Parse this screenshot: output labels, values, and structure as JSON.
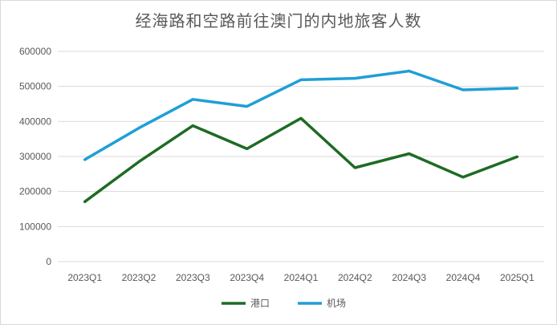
{
  "chart_data": {
    "type": "line",
    "title": "经海路和空路前往澳门的内地旅客人数",
    "categories": [
      "2023Q1",
      "2023Q2",
      "2023Q3",
      "2023Q4",
      "2024Q1",
      "2024Q2",
      "2024Q3",
      "2024Q4",
      "2025Q1"
    ],
    "series": [
      {
        "name": "港口",
        "color": "#1e6b24",
        "values": [
          171000,
          285000,
          388000,
          322000,
          409000,
          268000,
          308000,
          241000,
          299000
        ]
      },
      {
        "name": "机场",
        "color": "#1f9fd6",
        "values": [
          291000,
          381000,
          463000,
          443000,
          519000,
          523000,
          544000,
          490000,
          495000
        ]
      }
    ],
    "yticks": [
      "0",
      "100000",
      "200000",
      "300000",
      "400000",
      "500000",
      "600000"
    ],
    "ylim": [
      0,
      600000
    ],
    "grid": true,
    "legend": "bottom"
  }
}
